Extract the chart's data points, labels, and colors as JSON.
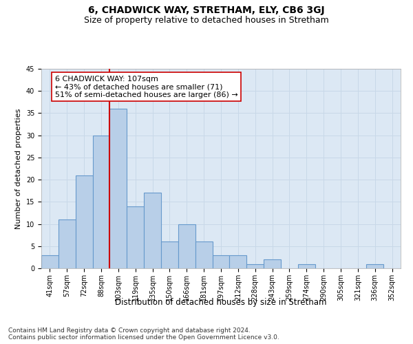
{
  "title": "6, CHADWICK WAY, STRETHAM, ELY, CB6 3GJ",
  "subtitle": "Size of property relative to detached houses in Stretham",
  "xlabel": "Distribution of detached houses by size in Stretham",
  "ylabel": "Number of detached properties",
  "categories": [
    "41sqm",
    "57sqm",
    "72sqm",
    "88sqm",
    "103sqm",
    "119sqm",
    "135sqm",
    "150sqm",
    "166sqm",
    "181sqm",
    "197sqm",
    "212sqm",
    "228sqm",
    "243sqm",
    "259sqm",
    "274sqm",
    "290sqm",
    "305sqm",
    "321sqm",
    "336sqm",
    "352sqm"
  ],
  "values": [
    3,
    11,
    21,
    30,
    36,
    14,
    17,
    6,
    10,
    6,
    3,
    3,
    1,
    2,
    0,
    1,
    0,
    0,
    0,
    1,
    0
  ],
  "bar_color": "#b8cfe8",
  "bar_edge_color": "#6699cc",
  "bar_edge_width": 0.8,
  "vline_x": 4.0,
  "vline_color": "#cc0000",
  "annotation_text": "6 CHADWICK WAY: 107sqm\n← 43% of detached houses are smaller (71)\n51% of semi-detached houses are larger (86) →",
  "annotation_box_color": "white",
  "annotation_box_edge": "#cc0000",
  "ylim": [
    0,
    45
  ],
  "yticks": [
    0,
    5,
    10,
    15,
    20,
    25,
    30,
    35,
    40,
    45
  ],
  "grid_color": "#c8d8e8",
  "background_color": "#dce8f4",
  "footer_line1": "Contains HM Land Registry data © Crown copyright and database right 2024.",
  "footer_line2": "Contains public sector information licensed under the Open Government Licence v3.0.",
  "title_fontsize": 10,
  "subtitle_fontsize": 9,
  "xlabel_fontsize": 8.5,
  "ylabel_fontsize": 8,
  "tick_fontsize": 7,
  "footer_fontsize": 6.5,
  "annotation_fontsize": 8
}
